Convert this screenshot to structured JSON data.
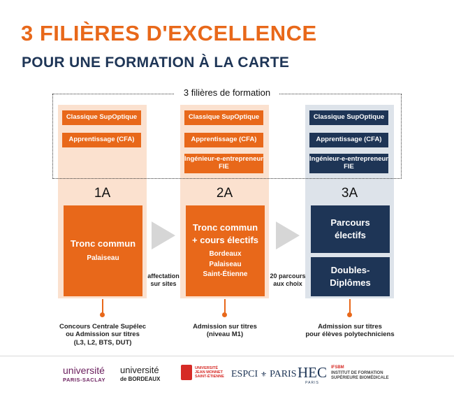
{
  "header": {
    "title": "3 FILIÈRES D'EXCELLENCE",
    "subtitle": "POUR UNE FORMATION À LA CARTE"
  },
  "filieres_label": "3 filières de formation",
  "columns": [
    {
      "year": "1A",
      "pills": [
        "Classique SupOptique",
        "Apprentissage (CFA)"
      ],
      "main_title": "Tronc commun",
      "main_sub": "Palaiseau",
      "admission": "Concours Centrale Supélec\nou Admission sur titres\n(L3, L2, BTS, DUT)"
    },
    {
      "year": "2A",
      "pills": [
        "Classique SupOptique",
        "Apprentissage (CFA)",
        "Ingénieur-e-entrepreneur\nFIE"
      ],
      "main_title": "Tronc commun\n+ cours électifs",
      "main_sub": "Bordeaux\nPalaiseau\nSaint-Étienne",
      "admission": "Admission sur titres\n(niveau M1)"
    },
    {
      "year": "3A",
      "pills": [
        "Classique SupOptique",
        "Apprentissage (CFA)",
        "Ingénieur-e-entrepreneur\nFIE"
      ],
      "box_a": "Parcours\nélectifs",
      "box_b": "Doubles-\nDiplômes",
      "admission": "Admission sur titres\npour élèves polytechniciens"
    }
  ],
  "arrows": [
    {
      "label": "affectation\nsur sites"
    },
    {
      "label": "20 parcours\naux choix"
    }
  ],
  "logos": {
    "ups_line1": "université",
    "ups_line2": "PARIS-SACLAY",
    "ub_line1": "université",
    "ub_line2": "de BORDEAUX",
    "jm": "UNIVERSITÉ\nJEAN MONNET\nSAINT-ÉTIENNE",
    "espci_left": "ESPCI",
    "espci_right": "PARIS",
    "hec": "HEC",
    "hec_sub": "PARIS",
    "ifsbm_red": "IFSBM",
    "ifsbm_gray": "INSTITUT DE FORMATION\nSUPÉRIEURE BIOMÉDICALE"
  },
  "colors": {
    "orange": "#e8681a",
    "navy": "#1e3556",
    "peach": "#fbe1cf",
    "grayblue": "#dde3ea"
  }
}
